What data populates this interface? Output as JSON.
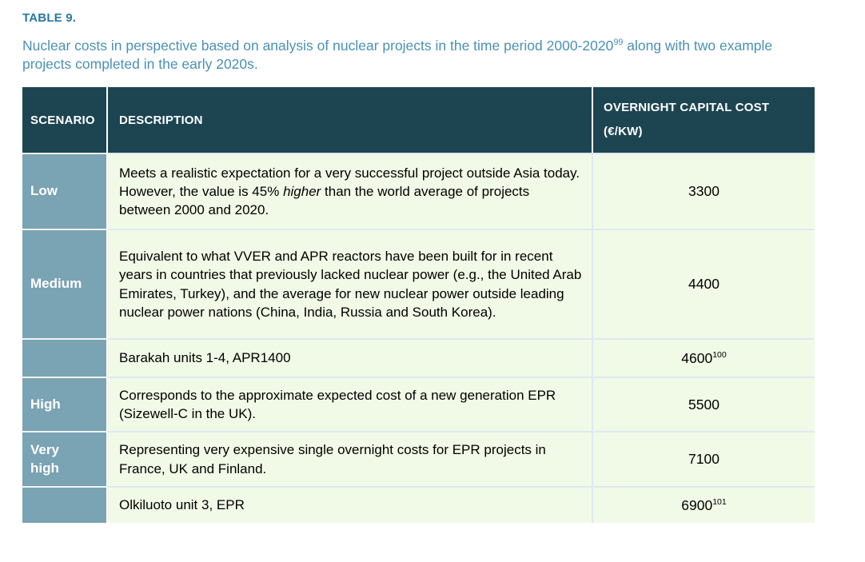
{
  "title": "TABLE 9.",
  "caption": {
    "before": "Nuclear costs in perspective based on analysis of nuclear projects in the time period 2000-2020",
    "sup": "99",
    "after": " along with two example projects completed in the early 2020s."
  },
  "colors": {
    "header_bg": "#1d4551",
    "scenario_bg": "#7aa3b3",
    "cell_bg": "#f1fae7",
    "title_text": "#2679a1",
    "caption_text": "#4a90b6"
  },
  "table": {
    "headers": {
      "scenario": "SCENARIO",
      "description": "DESCRIPTION",
      "cost_line1": "OVERNIGHT CAPITAL COST",
      "cost_line2": "(€/KW)"
    },
    "rows": [
      {
        "scenario": "Low",
        "description": [
          {
            "text": "Meets a realistic expectation for a very successful project outside Asia today. However, the value is 45% "
          },
          {
            "text": "higher",
            "italic": true
          },
          {
            "text": " than the world average of projects between 2000 and 2020."
          }
        ],
        "cost": "3300",
        "cost_sup": ""
      },
      {
        "scenario": "Medium",
        "description": [
          {
            "text": "Equivalent to what VVER and APR reactors have been built for in recent years in countries that previously lacked nuclear power (e.g., the United Arab Emirates, Turkey), and the average for new nuclear power outside leading nuclear power nations (China, India, Russia and South Korea)."
          }
        ],
        "cost": "4400",
        "cost_sup": ""
      },
      {
        "scenario": "",
        "description": [
          {
            "text": "Barakah units 1-4, APR1400"
          }
        ],
        "cost": "4600",
        "cost_sup": "100"
      },
      {
        "scenario": "High",
        "description": [
          {
            "text": "Corresponds to the approximate expected cost of a new generation EPR (Sizewell-C in the UK)."
          }
        ],
        "cost": "5500",
        "cost_sup": ""
      },
      {
        "scenario": "Very\nhigh",
        "description": [
          {
            "text": "Representing very expensive single overnight costs for EPR projects in France, UK and Finland."
          }
        ],
        "cost": "7100",
        "cost_sup": ""
      },
      {
        "scenario": "",
        "description": [
          {
            "text": "Olkiluoto unit 3, EPR"
          }
        ],
        "cost": "6900",
        "cost_sup": "101"
      }
    ]
  }
}
